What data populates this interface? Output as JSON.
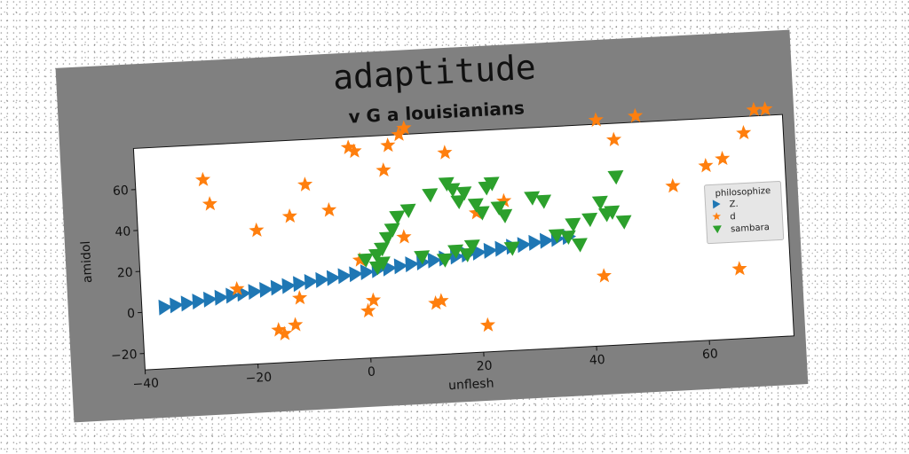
{
  "chart_data": {
    "type": "scatter",
    "title": "adaptitude",
    "subtitle": "v G a louisianians",
    "xlabel": "unflesh",
    "ylabel": "amidol",
    "xlim": [
      -40,
      75
    ],
    "ylim": [
      -28,
      80
    ],
    "x_ticks": [
      -40,
      -20,
      0,
      20,
      40,
      60
    ],
    "y_ticks": [
      -20,
      0,
      20,
      40,
      60
    ],
    "grid": false,
    "legend": {
      "title": "philosophize",
      "placement": "right"
    },
    "colors": {
      "Z.": "#1f77b4",
      "d": "#ff7f0e",
      "sambara": "#2ca02c",
      "figure_bg": "#808080",
      "plot_bg": "#ffffff"
    },
    "series": [
      {
        "name": "Z.",
        "marker": "triangle-right",
        "x": [
          -36.0,
          -34.0,
          -32.0,
          -30.0,
          -28.0,
          -26.0,
          -24.0,
          -22.0,
          -20.0,
          -18.0,
          -16.0,
          -14.0,
          -12.0,
          -10.0,
          -8.0,
          -6.0,
          -4.0,
          -2.0,
          0.0,
          2.0,
          4.0,
          6.0,
          8.0,
          10.0,
          12.0,
          14.0,
          16.0,
          18.0,
          20.0,
          22.0,
          24.0,
          26.0,
          28.0,
          30.0,
          32.0,
          34.0,
          36.0
        ],
        "y": [
          2.0,
          2.7,
          3.3,
          4.0,
          4.7,
          5.3,
          6.0,
          6.7,
          7.3,
          8.0,
          8.7,
          9.3,
          10.0,
          10.7,
          11.3,
          12.0,
          12.7,
          13.3,
          14.0,
          14.7,
          15.3,
          16.0,
          16.7,
          17.3,
          18.0,
          18.7,
          19.3,
          20.0,
          20.7,
          21.3,
          22.0,
          22.7,
          23.3,
          24.0,
          24.7,
          25.3,
          26.0
        ]
      },
      {
        "name": "d",
        "marker": "star",
        "x": [
          -28,
          -27,
          -19,
          -13,
          -10,
          -6,
          -2,
          -1,
          4,
          5,
          7,
          8,
          15,
          20,
          25,
          42,
          45,
          49,
          55,
          61,
          64,
          68,
          70,
          70,
          72,
          -16,
          -15,
          -13,
          -12,
          -23,
          -1,
          1,
          0,
          12,
          13,
          21,
          7,
          42,
          66,
          70
        ],
        "y": [
          63,
          51,
          37,
          43,
          58,
          45,
          75,
          73,
          63,
          75,
          80,
          83,
          70,
          40,
          45,
          82,
          72,
          83,
          48,
          57,
          60,
          72,
          83,
          37,
          83,
          -12,
          -14,
          -10,
          3,
          9,
          20,
          0,
          -5,
          -3,
          -2,
          -15,
          30,
          6,
          6,
          37
        ]
      },
      {
        "name": "sambara",
        "marker": "triangle-down",
        "x": [
          0,
          2,
          3,
          4,
          5,
          6,
          8,
          12,
          15,
          16,
          17,
          18,
          20,
          21,
          22,
          23,
          24,
          25,
          30,
          32,
          34,
          36,
          37,
          38,
          40,
          42,
          43,
          44,
          45,
          46,
          2,
          3,
          10,
          14,
          16,
          18,
          19,
          26
        ],
        "y": [
          20,
          22,
          25,
          30,
          34,
          40,
          43,
          50,
          55,
          52,
          46,
          50,
          44,
          40,
          52,
          54,
          42,
          38,
          46,
          44,
          27,
          26,
          32,
          22,
          34,
          42,
          36,
          37,
          54,
          32,
          16,
          18,
          20,
          18,
          22,
          20,
          24,
          22
        ]
      }
    ]
  }
}
